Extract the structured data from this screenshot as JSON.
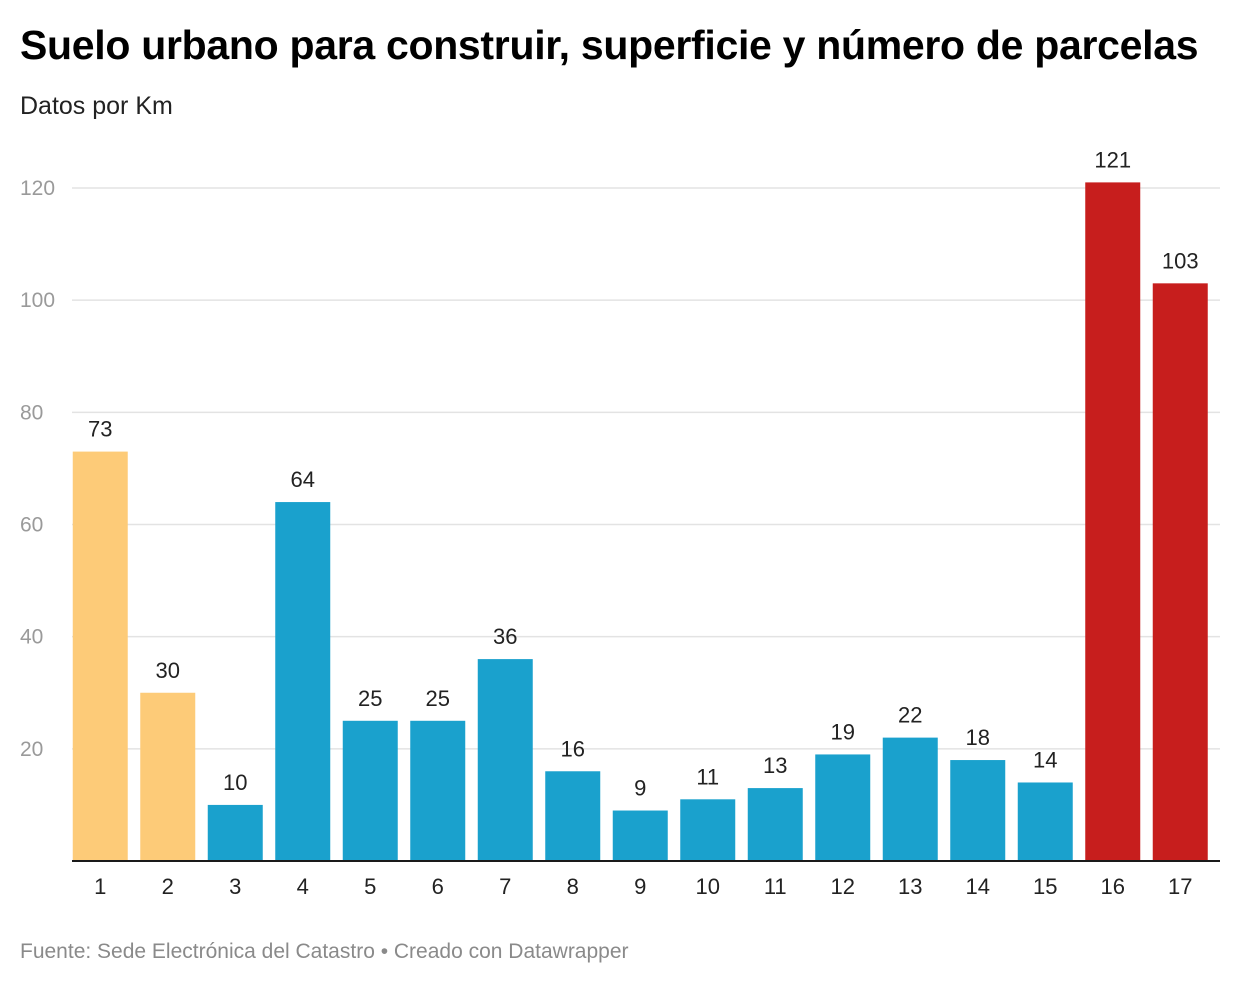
{
  "title": "Suelo urbano para construir, superficie y número de parcelas",
  "subtitle": "Datos por Km",
  "footer": "Fuente: Sede Electrónica del Catastro • Creado con Datawrapper",
  "colors": {
    "yellow": "#fdcb78",
    "blue": "#1aa1cd",
    "red": "#c71e1d",
    "grid": "#e3e3e3",
    "axis": "#1a1a1a"
  },
  "chart_data": {
    "type": "bar",
    "title": "Suelo urbano para construir, superficie y número de parcelas",
    "subtitle": "Datos por Km",
    "categories": [
      "1",
      "2",
      "3",
      "4",
      "5",
      "6",
      "7",
      "8",
      "9",
      "10",
      "11",
      "12",
      "13",
      "14",
      "15",
      "16",
      "17"
    ],
    "values": [
      73,
      30,
      10,
      64,
      25,
      25,
      36,
      16,
      9,
      11,
      13,
      19,
      22,
      18,
      14,
      121,
      103
    ],
    "bar_colors": [
      "yellow",
      "yellow",
      "blue",
      "blue",
      "blue",
      "blue",
      "blue",
      "blue",
      "blue",
      "blue",
      "blue",
      "blue",
      "blue",
      "blue",
      "blue",
      "red",
      "red"
    ],
    "yticks": [
      20,
      40,
      60,
      80,
      100,
      120
    ],
    "ylim": [
      0,
      120
    ],
    "grid": true,
    "data_labels": true,
    "legend": false
  }
}
